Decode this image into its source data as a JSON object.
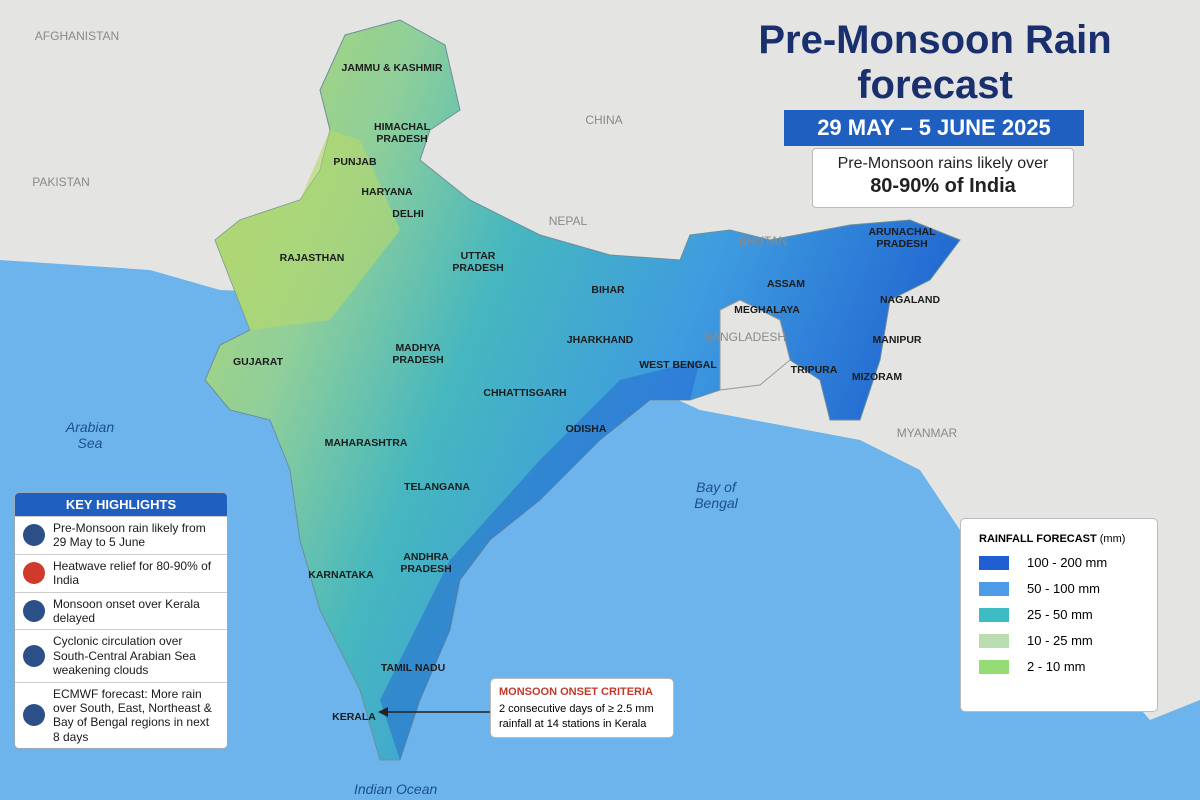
{
  "title": "Pre-Monsoon Rain forecast",
  "date_badge": "29 MAY – 5 JUNE 2025",
  "summary": {
    "line1": "Pre-Monsoon rains likely over",
    "line2": "80-90% of India"
  },
  "countries": [
    "AFGHANISTAN",
    "PAKISTAN",
    "CHINA",
    "NEPAL",
    "BHUTAN",
    "BANGLADESH",
    "MYANMAR"
  ],
  "seas": [
    "Arabian Sea",
    "Bay of Bengal",
    "Indian Ocean"
  ],
  "states": [
    "JAMMU & KASHMIR",
    "HIMACHAL PRADESH",
    "PUNJAB",
    "HARYANA",
    "DELHI",
    "RAJASTHAN",
    "UTTAR PRADESH",
    "BIHAR",
    "GUJARAT",
    "MADHYA PRADESH",
    "JHARKHAND",
    "WEST BENGAL",
    "CHHATTISGARH",
    "ODISHA",
    "MAHARASHTRA",
    "TELANGANA",
    "ANDHRA PRADESH",
    "KARNATAKA",
    "TAMIL NADU",
    "KERALA",
    "ARUNACHAL PRADESH",
    "ASSAM",
    "MEGHALAYA",
    "NAGALAND",
    "MANIPUR",
    "TRIPURA",
    "MIZORAM"
  ],
  "highlights": {
    "title": "KEY HIGHLIGHTS",
    "items": [
      {
        "text": "Pre-Monsoon rain likely from 29 May to 5 June",
        "icon_color": "#2b4f86"
      },
      {
        "text": "Heatwave relief for 80-90% of India",
        "icon_color": "#d0392b"
      },
      {
        "text": "Monsoon onset over Kerala delayed",
        "icon_color": "#2b4f86"
      },
      {
        "text": "Cyclonic circulation over South-Central Arabian Sea weakening clouds",
        "icon_color": "#2b4f86"
      },
      {
        "text": "ECMWF forecast: More rain over South, East, Northeast & Bay of Bengal regions in next 8 days",
        "icon_color": "#2b4f86"
      }
    ]
  },
  "legend": {
    "title": "RAINFALL FORECAST",
    "unit": "(mm)",
    "items": [
      {
        "label": "100 - 200 mm",
        "color": "#1f5fd1"
      },
      {
        "label": "50 - 100 mm",
        "color": "#4d9be6"
      },
      {
        "label": "25 - 50 mm",
        "color": "#3dbcc4"
      },
      {
        "label": "10 - 25 mm",
        "color": "#b9ddb0"
      },
      {
        "label": "2 - 10 mm",
        "color": "#95dc74"
      }
    ]
  },
  "callout": {
    "title": "MONSOON ONSET CRITERIA",
    "text": "2 consecutive days of ≥ 2.5 mm rainfall at 14 stations in Kerala"
  }
}
